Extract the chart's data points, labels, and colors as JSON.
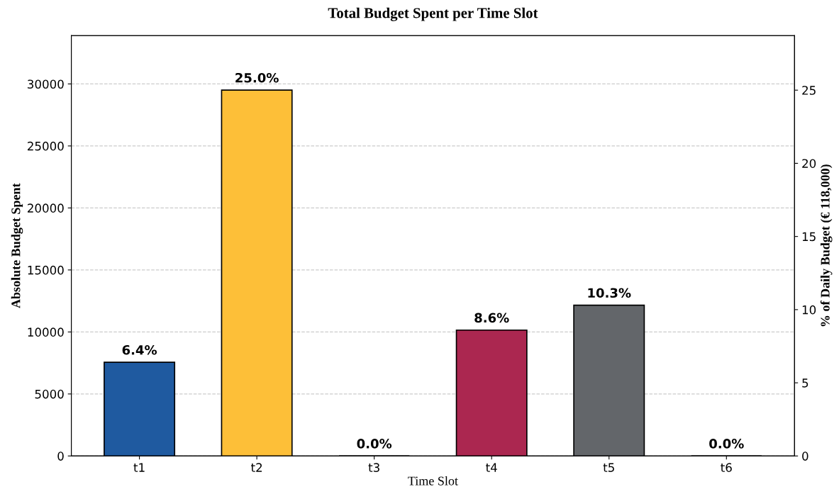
{
  "chart_data": {
    "type": "bar",
    "title": "Total Budget Spent per Time Slot",
    "xlabel": "Time Slot",
    "ylabel": "Absolute Budget Spent",
    "y2label": "% of Daily Budget (€ 118,000)",
    "categories": [
      "t1",
      "t2",
      "t3",
      "t4",
      "t5",
      "t6"
    ],
    "series": [
      {
        "axis": "y2",
        "colors": [
          "#1f5aa0",
          "#fdbf38",
          "#000000",
          "#ab2750",
          "#63666a",
          "#000000"
        ],
        "values": [
          6.4,
          25.0,
          0.0,
          8.6,
          10.3,
          0.0
        ],
        "value_labels": [
          "6.4%",
          "25.0%",
          "0.0%",
          "8.6%",
          "10.3%",
          "0.0%"
        ]
      }
    ],
    "ylim": [
      0,
      33900
    ],
    "yticks": [
      0,
      5000,
      10000,
      15000,
      20000,
      25000,
      30000
    ],
    "y2lim": [
      0,
      28.73
    ],
    "y2ticks": [
      0,
      5,
      10,
      15,
      20,
      25
    ],
    "grid": "y"
  }
}
